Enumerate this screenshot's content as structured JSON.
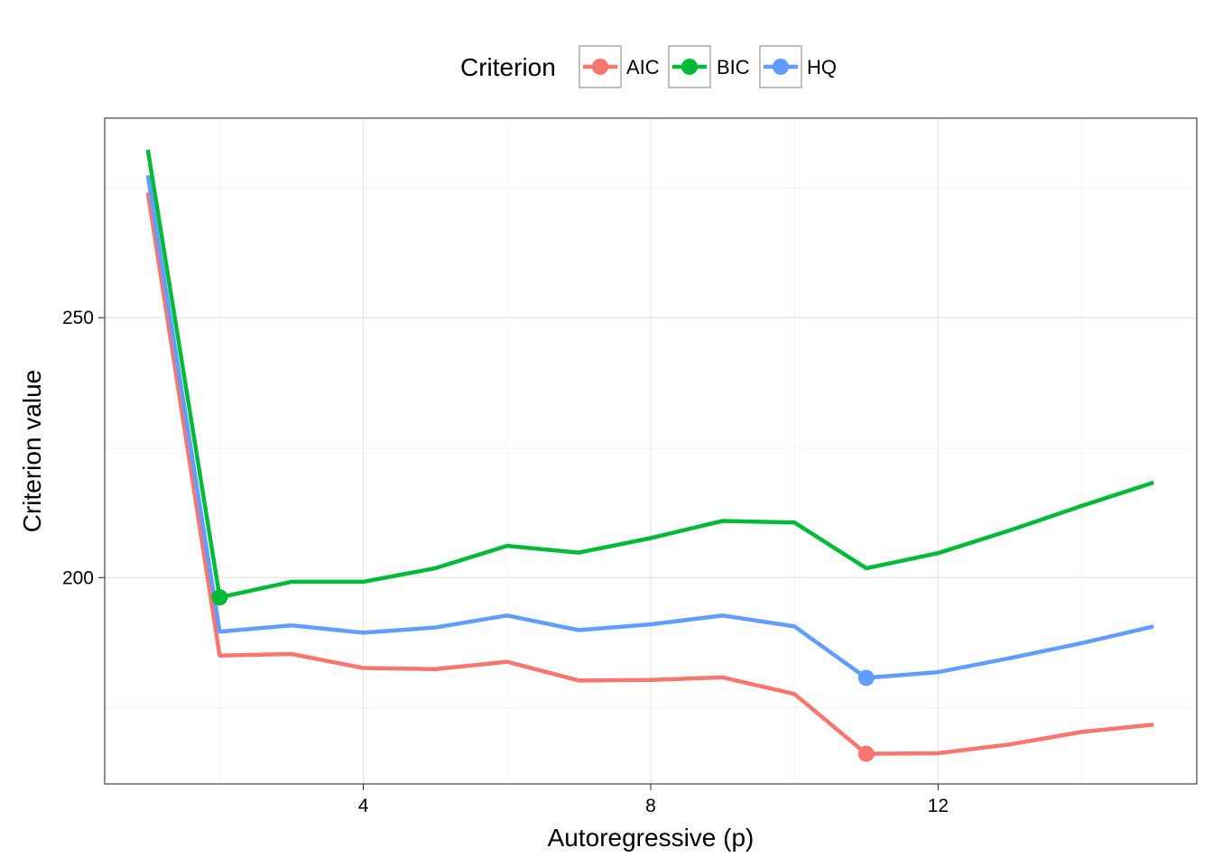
{
  "chart_data": {
    "type": "line",
    "xlabel": "Autoregressive (p)",
    "ylabel": "Criterion value",
    "xlim": [
      0.4,
      15.6
    ],
    "ylim": [
      160.3,
      288.4
    ],
    "x_ticks": [
      4,
      8,
      12
    ],
    "y_ticks": [
      200,
      250
    ],
    "x_minor_breaks": [
      2,
      6,
      10,
      14
    ],
    "y_minor_breaks": [
      175,
      225,
      275
    ],
    "grid": true,
    "legend": {
      "title": "Criterion",
      "position": "top"
    },
    "x": [
      1,
      2,
      3,
      4,
      5,
      6,
      7,
      8,
      9,
      10,
      11,
      12,
      13,
      14,
      15
    ],
    "series": [
      {
        "name": "AIC",
        "color": "#F8766D",
        "values": [
          274.1,
          185.0,
          185.3,
          182.6,
          182.4,
          183.8,
          180.2,
          180.3,
          180.8,
          177.6,
          166.1,
          166.2,
          167.9,
          170.3,
          171.7
        ],
        "min_point": {
          "x": 11,
          "y": 166.1
        }
      },
      {
        "name": "BIC",
        "color": "#00BA38",
        "values": [
          282.3,
          196.2,
          199.2,
          199.2,
          201.8,
          206.1,
          204.8,
          207.6,
          210.9,
          210.6,
          201.8,
          204.7,
          209.1,
          213.8,
          218.3
        ],
        "min_point": {
          "x": 2,
          "y": 196.2
        }
      },
      {
        "name": "HQ",
        "color": "#619CFF",
        "values": [
          277.4,
          189.6,
          190.8,
          189.4,
          190.4,
          192.7,
          189.9,
          191.0,
          192.7,
          190.6,
          180.7,
          181.8,
          184.5,
          187.4,
          190.6
        ],
        "min_point": {
          "x": 11,
          "y": 180.7
        }
      }
    ]
  }
}
